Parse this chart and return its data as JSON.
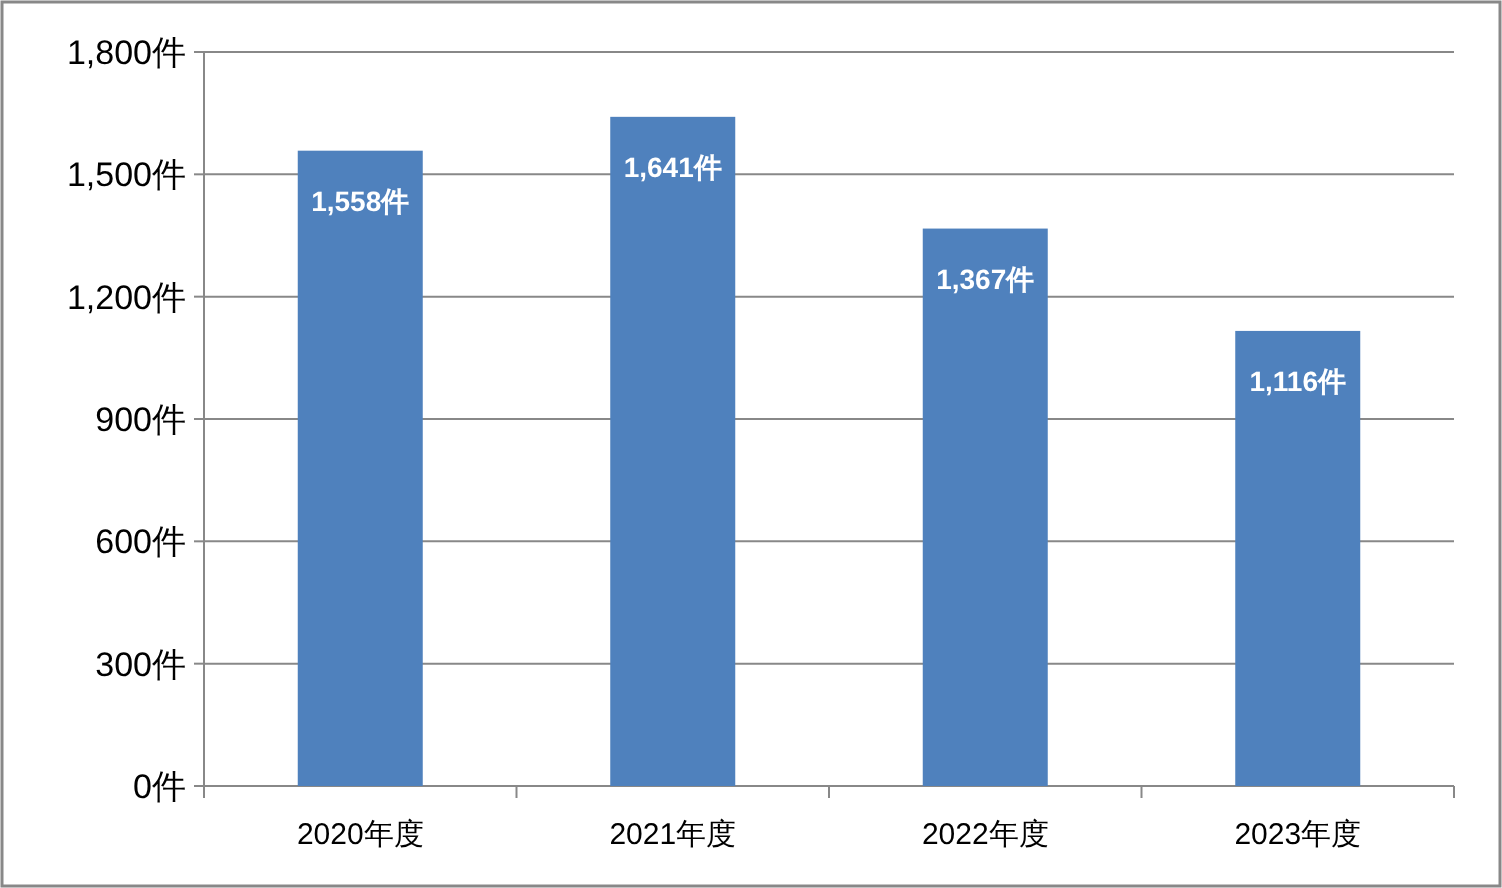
{
  "chart_data": {
    "type": "bar",
    "categories": [
      "2020年度",
      "2021年度",
      "2022年度",
      "2023年度"
    ],
    "values": [
      1558,
      1641,
      1367,
      1116
    ],
    "value_labels": [
      "1,558件",
      "1,641件",
      "1,367件",
      "1,116件"
    ],
    "color": "#4f81bd",
    "ylim": [
      0,
      1800
    ],
    "yticks": [
      {
        "value": 0,
        "label": "0件"
      },
      {
        "value": 300,
        "label": "300件"
      },
      {
        "value": 600,
        "label": "600件"
      },
      {
        "value": 900,
        "label": "900件"
      },
      {
        "value": 1200,
        "label": "1,200件"
      },
      {
        "value": 1500,
        "label": "1,500件"
      },
      {
        "value": 1800,
        "label": "1,800件"
      }
    ],
    "grid": "y"
  }
}
